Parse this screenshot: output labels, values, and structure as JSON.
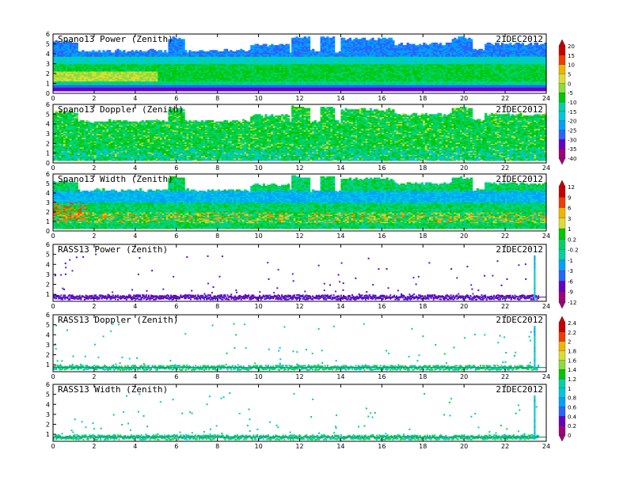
{
  "chart_data": [
    {
      "type": "heatmap",
      "title": "Spano13 Power (Zenith)",
      "date": "21DEC2012",
      "x_ticks": [
        0,
        2,
        4,
        6,
        8,
        10,
        12,
        14,
        16,
        18,
        20,
        22,
        24
      ],
      "y_ticks": [
        0,
        1,
        2,
        3,
        4,
        5,
        6
      ],
      "xlim": [
        0,
        24
      ],
      "ylim": [
        0,
        6
      ],
      "colorbar": "A",
      "field": "power"
    },
    {
      "type": "heatmap",
      "title": "Spano13 Doppler (Zenith)",
      "date": "21DEC2012",
      "x_ticks": [
        0,
        2,
        4,
        6,
        8,
        10,
        12,
        14,
        16,
        18,
        20,
        22,
        24
      ],
      "y_ticks": [
        0,
        1,
        2,
        3,
        4,
        5,
        6
      ],
      "xlim": [
        0,
        24
      ],
      "ylim": [
        0,
        6
      ],
      "colorbar": "A",
      "field": "doppler"
    },
    {
      "type": "heatmap",
      "title": "Spano13 Width (Zenith)",
      "date": "21DEC2012",
      "x_ticks": [
        0,
        2,
        4,
        6,
        8,
        10,
        12,
        14,
        16,
        18,
        20,
        22,
        24
      ],
      "y_ticks": [
        0,
        1,
        2,
        3,
        4,
        5,
        6
      ],
      "xlim": [
        0,
        24
      ],
      "ylim": [
        0,
        6
      ],
      "colorbar": "B",
      "field": "width"
    },
    {
      "type": "scatter",
      "title": "RASS13 Power (Zenith)",
      "date": "21DEC2012",
      "x_ticks": [
        0,
        2,
        4,
        6,
        8,
        10,
        12,
        14,
        16,
        18,
        20,
        22,
        24
      ],
      "y_ticks": [
        1,
        2,
        3,
        4,
        5,
        6
      ],
      "xlim": [
        0,
        24
      ],
      "ylim": [
        0.3,
        6
      ],
      "colorbar": "B",
      "field": "rass_power"
    },
    {
      "type": "scatter",
      "title": "RASS13 Doppler (Zenith)",
      "date": "21DEC2012",
      "x_ticks": [
        0,
        2,
        4,
        6,
        8,
        10,
        12,
        14,
        16,
        18,
        20,
        22,
        24
      ],
      "y_ticks": [
        1,
        2,
        3,
        4,
        5,
        6
      ],
      "xlim": [
        0,
        24
      ],
      "ylim": [
        0.3,
        6
      ],
      "colorbar": "C",
      "field": "rass_doppler"
    },
    {
      "type": "scatter",
      "title": "RASS13 Width (Zenith)",
      "date": "21DEC2012",
      "x_ticks": [
        0,
        2,
        4,
        6,
        8,
        10,
        12,
        14,
        16,
        18,
        20,
        22,
        24
      ],
      "y_ticks": [
        1,
        2,
        3,
        4,
        5,
        6
      ],
      "xlim": [
        0,
        24
      ],
      "ylim": [
        0.3,
        6
      ],
      "colorbar": "C",
      "field": "rass_width"
    }
  ],
  "colorbars": {
    "A": {
      "labels": [
        "20",
        "15",
        "10",
        "5",
        "0",
        "-5",
        "-10",
        "-15",
        "-20",
        "-25",
        "-30",
        "-35",
        "-40"
      ]
    },
    "B": {
      "labels": [
        "12",
        "9",
        "6",
        "3",
        "1",
        "0.2",
        "-0.2",
        "-1",
        "-3",
        "-6",
        "-9",
        "-12"
      ]
    },
    "C": {
      "labels": [
        "2.4",
        "2.2",
        "2",
        "1.8",
        "1.6",
        "1.4",
        "1.2",
        "1",
        "0.8",
        "0.6",
        "0.4",
        "0.2",
        "0"
      ]
    }
  },
  "palette": [
    "#a0007a",
    "#6400c8",
    "#3c28e6",
    "#2864ff",
    "#00a0ff",
    "#00c8dc",
    "#00d2a0",
    "#00d264",
    "#00c800",
    "#8cdc3c",
    "#dcdc32",
    "#f0b400",
    "#ff8200",
    "#f03c00",
    "#c80000"
  ]
}
